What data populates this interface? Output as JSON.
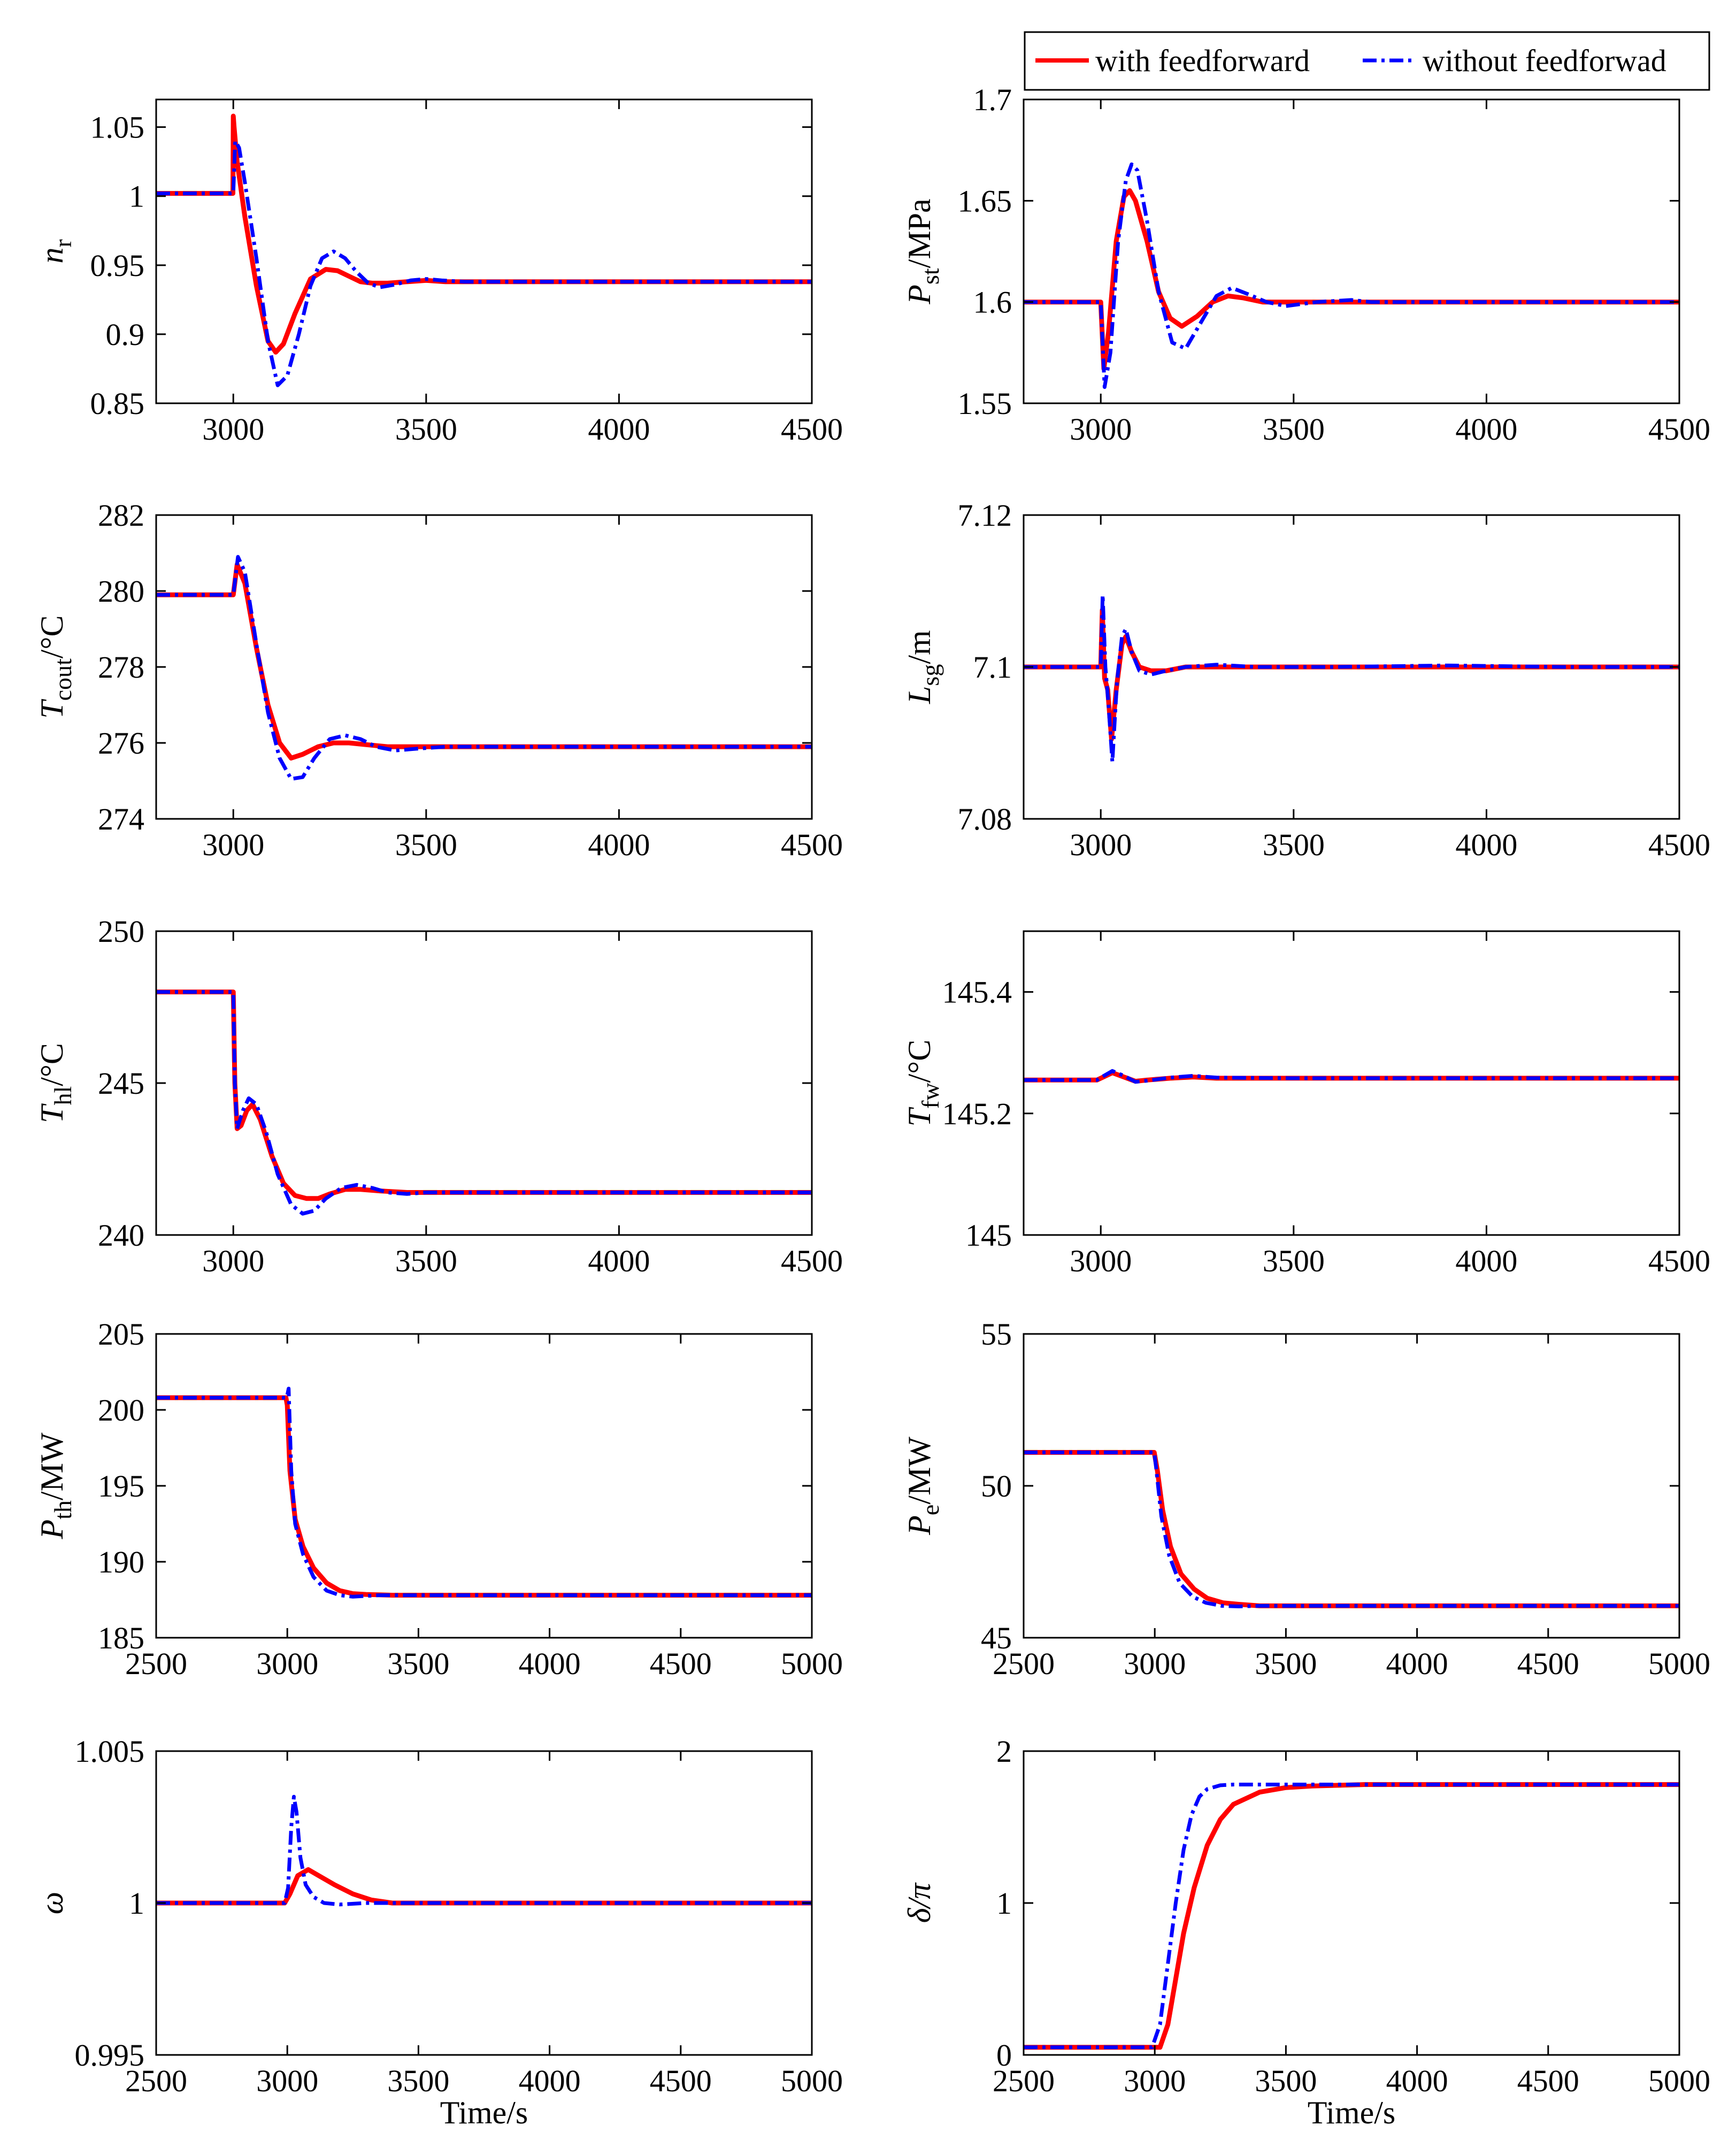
{
  "colors": {
    "with": "#ff0000",
    "without": "#0000ff",
    "axis": "#000000"
  },
  "legend": {
    "with_label": "with feedforward",
    "without_label": "without feedforwad",
    "placement": "top-right"
  },
  "chart_data": [
    {
      "id": "nr",
      "type": "line",
      "xlabel": "",
      "ylabel_main": "n",
      "ylabel_sub": "r",
      "ylabel_unit": "",
      "xlim": [
        2800,
        4500
      ],
      "ylim": [
        0.85,
        1.07
      ],
      "xticks": [
        "3000",
        "3500",
        "4000",
        "4500"
      ],
      "yticks": [
        "0.85",
        "0.9",
        "0.95",
        "1",
        "1.05"
      ],
      "series": [
        {
          "name": "with feedforward",
          "x": [
            2800,
            2999,
            3000,
            3002,
            3010,
            3030,
            3060,
            3090,
            3110,
            3130,
            3160,
            3200,
            3240,
            3270,
            3300,
            3330,
            3360,
            3400,
            3450,
            3500,
            3550,
            3600,
            4500
          ],
          "y": [
            1.002,
            1.002,
            1.058,
            1.05,
            1.025,
            0.985,
            0.935,
            0.895,
            0.887,
            0.893,
            0.915,
            0.94,
            0.947,
            0.946,
            0.942,
            0.938,
            0.937,
            0.937,
            0.938,
            0.939,
            0.938,
            0.938,
            0.938
          ]
        },
        {
          "name": "without feedforwad",
          "x": [
            2800,
            2999,
            3000,
            3005,
            3015,
            3030,
            3060,
            3090,
            3115,
            3140,
            3170,
            3200,
            3230,
            3260,
            3290,
            3320,
            3350,
            3380,
            3420,
            3460,
            3500,
            3540,
            3600,
            4500
          ],
          "y": [
            1.002,
            1.002,
            1.002,
            1.04,
            1.035,
            1.01,
            0.955,
            0.895,
            0.863,
            0.87,
            0.9,
            0.935,
            0.955,
            0.96,
            0.955,
            0.945,
            0.937,
            0.934,
            0.936,
            0.939,
            0.94,
            0.939,
            0.938,
            0.938
          ]
        }
      ]
    },
    {
      "id": "pst",
      "type": "line",
      "xlabel": "",
      "ylabel_main": "P",
      "ylabel_sub": "st",
      "ylabel_unit": "/MPa",
      "xlim": [
        2800,
        4500
      ],
      "ylim": [
        1.55,
        1.7
      ],
      "xticks": [
        "3000",
        "3500",
        "4000",
        "4500"
      ],
      "yticks": [
        "1.55",
        "1.6",
        "1.65",
        "1.7"
      ],
      "series": [
        {
          "name": "with feedforward",
          "x": [
            2800,
            2999,
            3000,
            3008,
            3020,
            3040,
            3060,
            3075,
            3090,
            3120,
            3150,
            3180,
            3210,
            3250,
            3290,
            3330,
            3370,
            3420,
            3500,
            4500
          ],
          "y": [
            1.6,
            1.6,
            1.6,
            1.567,
            1.585,
            1.63,
            1.652,
            1.655,
            1.65,
            1.63,
            1.605,
            1.592,
            1.588,
            1.593,
            1.6,
            1.603,
            1.602,
            1.6,
            1.6,
            1.6
          ]
        },
        {
          "name": "without feedforwad",
          "x": [
            2800,
            2999,
            3000,
            3010,
            3025,
            3045,
            3065,
            3080,
            3095,
            3120,
            3150,
            3185,
            3220,
            3260,
            3300,
            3340,
            3380,
            3430,
            3480,
            3560,
            3650,
            3700,
            4500
          ],
          "y": [
            1.6,
            1.6,
            1.6,
            1.558,
            1.575,
            1.63,
            1.66,
            1.668,
            1.665,
            1.64,
            1.605,
            1.58,
            1.577,
            1.59,
            1.603,
            1.607,
            1.604,
            1.6,
            1.598,
            1.6,
            1.601,
            1.6,
            1.6
          ]
        }
      ]
    },
    {
      "id": "tcout",
      "type": "line",
      "xlabel": "",
      "ylabel_main": "T",
      "ylabel_sub": "cout",
      "ylabel_unit": "/°C",
      "xlim": [
        2800,
        4500
      ],
      "ylim": [
        274,
        282
      ],
      "xticks": [
        "3000",
        "3500",
        "4000",
        "4500"
      ],
      "yticks": [
        "274",
        "276",
        "278",
        "280",
        "282"
      ],
      "series": [
        {
          "name": "with feedforward",
          "x": [
            2800,
            2999,
            3000,
            3010,
            3030,
            3060,
            3090,
            3120,
            3150,
            3180,
            3220,
            3260,
            3300,
            3350,
            3400,
            3500,
            4500
          ],
          "y": [
            279.9,
            279.9,
            279.9,
            280.7,
            280.2,
            278.5,
            277.0,
            276.0,
            275.6,
            275.7,
            275.9,
            276.0,
            276.0,
            275.95,
            275.9,
            275.9,
            275.9
          ]
        },
        {
          "name": "without feedforwad",
          "x": [
            2800,
            2999,
            3000,
            3012,
            3030,
            3060,
            3090,
            3120,
            3150,
            3180,
            3210,
            3250,
            3290,
            3330,
            3370,
            3420,
            3480,
            3550,
            3600,
            4500
          ],
          "y": [
            279.9,
            279.9,
            279.9,
            280.9,
            280.5,
            278.6,
            276.8,
            275.6,
            275.05,
            275.1,
            275.6,
            276.1,
            276.2,
            276.1,
            275.9,
            275.8,
            275.85,
            275.9,
            275.9,
            275.9
          ]
        }
      ]
    },
    {
      "id": "lsg",
      "type": "line",
      "xlabel": "",
      "ylabel_main": "L",
      "ylabel_sub": "sg",
      "ylabel_unit": "/m",
      "xlim": [
        2800,
        4500
      ],
      "ylim": [
        7.08,
        7.12
      ],
      "xticks": [
        "3000",
        "3500",
        "4000",
        "4500"
      ],
      "yticks": [
        "7.08",
        "7.1",
        "7.12"
      ],
      "series": [
        {
          "name": "with feedforward",
          "x": [
            2800,
            2995,
            3000,
            3004,
            3010,
            3018,
            3028,
            3040,
            3055,
            3065,
            3080,
            3100,
            3130,
            3170,
            3220,
            3300,
            3500,
            4500
          ],
          "y": [
            7.1,
            7.1,
            7.1,
            7.1075,
            7.0985,
            7.097,
            7.0905,
            7.097,
            7.103,
            7.104,
            7.102,
            7.1,
            7.0995,
            7.0995,
            7.1,
            7.1,
            7.1,
            7.1
          ]
        },
        {
          "name": "without feedforwad",
          "x": [
            2800,
            2995,
            3000,
            3005,
            3012,
            3020,
            3030,
            3042,
            3055,
            3065,
            3080,
            3100,
            3130,
            3170,
            3220,
            3300,
            3400,
            3600,
            3900,
            4200,
            4500
          ],
          "y": [
            7.1,
            7.1,
            7.1,
            7.1095,
            7.1,
            7.095,
            7.0875,
            7.098,
            7.104,
            7.105,
            7.102,
            7.0995,
            7.099,
            7.0995,
            7.1,
            7.1003,
            7.1,
            7.1,
            7.1002,
            7.1,
            7.1
          ]
        }
      ]
    },
    {
      "id": "thl",
      "type": "line",
      "xlabel": "",
      "ylabel_main": "T",
      "ylabel_sub": "hl",
      "ylabel_unit": "/°C",
      "xlim": [
        2800,
        4500
      ],
      "ylim": [
        240,
        250
      ],
      "xticks": [
        "3000",
        "3500",
        "4000",
        "4500"
      ],
      "yticks": [
        "240",
        "245",
        "250"
      ],
      "series": [
        {
          "name": "with feedforward",
          "x": [
            2800,
            2999,
            3000,
            3004,
            3010,
            3020,
            3035,
            3050,
            3070,
            3100,
            3130,
            3160,
            3190,
            3220,
            3250,
            3290,
            3330,
            3380,
            3450,
            4500
          ],
          "y": [
            248,
            248,
            248,
            245,
            243.5,
            243.6,
            244.1,
            244.3,
            243.8,
            242.6,
            241.7,
            241.3,
            241.2,
            241.2,
            241.35,
            241.5,
            241.5,
            241.45,
            241.4,
            241.4
          ]
        },
        {
          "name": "without feedforwad",
          "x": [
            2800,
            2999,
            3000,
            3004,
            3010,
            3025,
            3040,
            3060,
            3085,
            3115,
            3150,
            3180,
            3210,
            3240,
            3280,
            3320,
            3360,
            3400,
            3450,
            3500,
            4500
          ],
          "y": [
            248,
            248,
            248,
            245,
            243.5,
            244.1,
            244.5,
            244.3,
            243.4,
            242.0,
            241.0,
            240.7,
            240.8,
            241.2,
            241.55,
            241.65,
            241.55,
            241.4,
            241.35,
            241.4,
            241.4
          ]
        }
      ]
    },
    {
      "id": "tfw",
      "type": "line",
      "xlabel": "",
      "ylabel_main": "T",
      "ylabel_sub": "fw",
      "ylabel_unit": "/°C",
      "xlim": [
        2800,
        4500
      ],
      "ylim": [
        145,
        145.5
      ],
      "xticks": [
        "3000",
        "3500",
        "4000",
        "4500"
      ],
      "yticks": [
        "145",
        "145.2",
        "145.4"
      ],
      "series": [
        {
          "name": "with feedforward",
          "x": [
            2800,
            2990,
            3000,
            3030,
            3060,
            3090,
            3120,
            3180,
            3240,
            3300,
            3500,
            4500
          ],
          "y": [
            145.255,
            145.255,
            145.258,
            145.267,
            145.26,
            145.253,
            145.255,
            145.258,
            145.26,
            145.258,
            145.258,
            145.258
          ]
        },
        {
          "name": "without feedforwad",
          "x": [
            2800,
            2990,
            3000,
            3030,
            3060,
            3090,
            3120,
            3180,
            3240,
            3300,
            3500,
            4500
          ],
          "y": [
            145.255,
            145.255,
            145.259,
            145.27,
            145.262,
            145.252,
            145.254,
            145.259,
            145.262,
            145.259,
            145.258,
            145.258
          ]
        }
      ]
    },
    {
      "id": "pth",
      "type": "line",
      "xlabel": "",
      "ylabel_main": "P",
      "ylabel_sub": "th",
      "ylabel_unit": "/MW",
      "xlim": [
        2500,
        5000
      ],
      "ylim": [
        185,
        205
      ],
      "xticks": [
        "2500",
        "3000",
        "3500",
        "4000",
        "4500",
        "5000"
      ],
      "yticks": [
        "185",
        "190",
        "195",
        "200",
        "205"
      ],
      "series": [
        {
          "name": "with feedforward",
          "x": [
            2500,
            2995,
            3000,
            3010,
            3030,
            3060,
            3100,
            3150,
            3200,
            3250,
            3300,
            3400,
            5000
          ],
          "y": [
            200.8,
            200.8,
            200.3,
            196.0,
            192.8,
            191.0,
            189.6,
            188.6,
            188.1,
            187.9,
            187.85,
            187.8,
            187.8
          ]
        },
        {
          "name": "without feedforwad",
          "x": [
            2500,
            2998,
            3005,
            3015,
            3030,
            3060,
            3100,
            3150,
            3200,
            3250,
            3300,
            3350,
            3400,
            5000
          ],
          "y": [
            200.8,
            200.8,
            201.4,
            196.0,
            192.5,
            190.5,
            189.0,
            188.1,
            187.8,
            187.7,
            187.75,
            187.8,
            187.8,
            187.8
          ]
        }
      ]
    },
    {
      "id": "pe",
      "type": "line",
      "xlabel": "",
      "ylabel_main": "P",
      "ylabel_sub": "e",
      "ylabel_unit": "/MW",
      "xlim": [
        2500,
        5000
      ],
      "ylim": [
        45,
        55
      ],
      "xticks": [
        "2500",
        "3000",
        "3500",
        "4000",
        "4500",
        "5000"
      ],
      "yticks": [
        "45",
        "50",
        "55"
      ],
      "series": [
        {
          "name": "with feedforward",
          "x": [
            2500,
            2998,
            3010,
            3030,
            3060,
            3100,
            3150,
            3200,
            3260,
            3320,
            3400,
            5000
          ],
          "y": [
            51.1,
            51.1,
            50.5,
            49.2,
            48.0,
            47.1,
            46.6,
            46.3,
            46.15,
            46.1,
            46.05,
            46.05
          ]
        },
        {
          "name": "without feedforwad",
          "x": [
            2500,
            2998,
            3005,
            3025,
            3055,
            3095,
            3145,
            3195,
            3255,
            3320,
            3400,
            5000
          ],
          "y": [
            51.1,
            51.1,
            50.6,
            49.0,
            47.7,
            46.8,
            46.35,
            46.15,
            46.05,
            46.03,
            46.05,
            46.05
          ]
        }
      ]
    },
    {
      "id": "omega",
      "type": "line",
      "xlabel": "Time/s",
      "ylabel_main": "ω",
      "ylabel_sub": "",
      "ylabel_unit": "",
      "xlim": [
        2500,
        5000
      ],
      "ylim": [
        0.995,
        1.005
      ],
      "xticks": [
        "2500",
        "3000",
        "3500",
        "4000",
        "4500",
        "5000"
      ],
      "yticks": [
        "0.995",
        "1",
        "1.005"
      ],
      "series": [
        {
          "name": "with feedforward",
          "x": [
            2500,
            2990,
            3010,
            3040,
            3080,
            3120,
            3180,
            3250,
            3320,
            3400,
            3500,
            5000
          ],
          "y": [
            1.0,
            1.0,
            1.0003,
            1.0009,
            1.0011,
            1.0009,
            1.0006,
            1.0003,
            1.0001,
            1.0,
            1.0,
            1.0
          ]
        },
        {
          "name": "without feedforwad",
          "x": [
            2500,
            2990,
            3003,
            3015,
            3025,
            3035,
            3050,
            3070,
            3100,
            3140,
            3200,
            3300,
            5000
          ],
          "y": [
            1.0,
            1.0,
            1.0005,
            1.0025,
            1.0035,
            1.003,
            1.0015,
            1.0006,
            1.0002,
            1.0,
            0.99995,
            1.0,
            1.0
          ]
        }
      ]
    },
    {
      "id": "delta",
      "type": "line",
      "xlabel": "Time/s",
      "ylabel_main": "δ/π",
      "ylabel_sub": "",
      "ylabel_unit": "",
      "xlim": [
        2500,
        5000
      ],
      "ylim": [
        0,
        2
      ],
      "xticks": [
        "2500",
        "3000",
        "3500",
        "4000",
        "4500",
        "5000"
      ],
      "yticks": [
        "0",
        "1",
        "2"
      ],
      "series": [
        {
          "name": "with feedforward",
          "x": [
            2500,
            3020,
            3050,
            3080,
            3110,
            3150,
            3200,
            3250,
            3300,
            3400,
            3500,
            3600,
            3700,
            3800,
            5000
          ],
          "y": [
            0.05,
            0.05,
            0.2,
            0.5,
            0.8,
            1.1,
            1.38,
            1.55,
            1.65,
            1.73,
            1.76,
            1.77,
            1.775,
            1.78,
            1.78
          ]
        },
        {
          "name": "without feedforwad",
          "x": [
            2500,
            2990,
            3020,
            3050,
            3080,
            3110,
            3140,
            3170,
            3200,
            3250,
            3300,
            3400,
            5000
          ],
          "y": [
            0.05,
            0.05,
            0.2,
            0.6,
            1.0,
            1.35,
            1.58,
            1.7,
            1.75,
            1.775,
            1.78,
            1.78,
            1.78
          ]
        }
      ]
    }
  ]
}
